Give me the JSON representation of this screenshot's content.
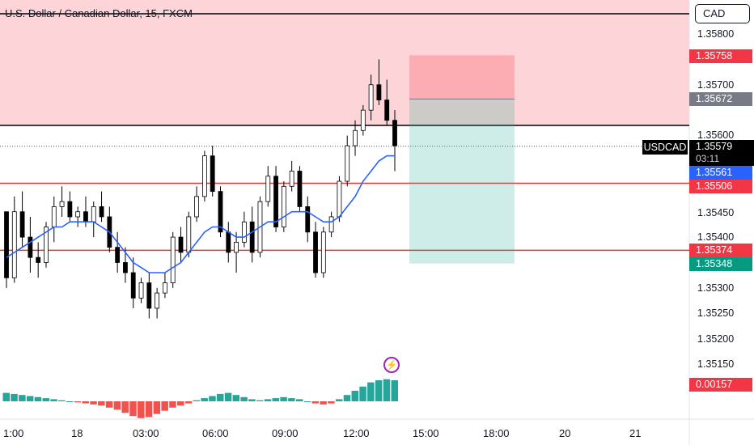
{
  "header": {
    "title": "U.S. Dollar / Canadian Dollar, 15, FXCM",
    "currency_button": "CAD"
  },
  "price_axis": {
    "ticks": [
      "1.35800",
      "1.35700",
      "1.35600",
      "1.35450",
      "1.35400",
      "1.35300",
      "1.35250",
      "1.35200",
      "1.35150"
    ]
  },
  "price_tags": {
    "stop": "1.35758",
    "entry": "1.35672",
    "symbol": "USDCAD",
    "last_price": "1.35579",
    "countdown": "03:11",
    "ma": "1.35561",
    "upper_line": "1.35506",
    "lower_line": "1.35374",
    "target": "1.35348",
    "oscillator": "0.00157"
  },
  "time_axis": {
    "labels": [
      "1:00",
      "18",
      "03:00",
      "06:00",
      "09:00",
      "12:00",
      "15:00",
      "18:00",
      "20",
      "21"
    ]
  },
  "colors": {
    "up": "#ffffff",
    "down": "#000000",
    "ma": "#2962ff",
    "hline": "#e53935",
    "stop_zone": "#f7525f",
    "target_zone": "#22ab94",
    "hist_up": "#26a69a",
    "hist_down": "#ef5350"
  },
  "icons": {
    "alert": "lightning-icon"
  },
  "chart_data": {
    "type": "candlestick",
    "symbol": "USDCAD",
    "timeframe": "15",
    "ylim": [
      1.351,
      1.3585
    ],
    "candles": [
      [
        1.3545,
        1.3545,
        1.353,
        1.3532
      ],
      [
        1.3532,
        1.3548,
        1.3531,
        1.3545
      ],
      [
        1.3545,
        1.3549,
        1.3538,
        1.354
      ],
      [
        1.354,
        1.3544,
        1.3533,
        1.3536
      ],
      [
        1.3536,
        1.3539,
        1.3532,
        1.3535
      ],
      [
        1.3535,
        1.3543,
        1.3534,
        1.3542
      ],
      [
        1.3542,
        1.3548,
        1.3539,
        1.3546
      ],
      [
        1.3546,
        1.355,
        1.3544,
        1.3547
      ],
      [
        1.3547,
        1.3549,
        1.3543,
        1.3544
      ],
      [
        1.3544,
        1.3546,
        1.3542,
        1.3545
      ],
      [
        1.3545,
        1.3548,
        1.3542,
        1.3543
      ],
      [
        1.3543,
        1.3547,
        1.354,
        1.3546
      ],
      [
        1.3546,
        1.3549,
        1.3543,
        1.3544
      ],
      [
        1.3544,
        1.3546,
        1.3537,
        1.3538
      ],
      [
        1.3538,
        1.3541,
        1.3533,
        1.3535
      ],
      [
        1.3535,
        1.3538,
        1.3531,
        1.3533
      ],
      [
        1.3533,
        1.3536,
        1.3526,
        1.3528
      ],
      [
        1.3528,
        1.3532,
        1.3527,
        1.3531
      ],
      [
        1.3531,
        1.3533,
        1.3524,
        1.3526
      ],
      [
        1.3526,
        1.353,
        1.3524,
        1.3529
      ],
      [
        1.3529,
        1.3533,
        1.3528,
        1.3531
      ],
      [
        1.3531,
        1.3541,
        1.353,
        1.354
      ],
      [
        1.354,
        1.3542,
        1.3535,
        1.3537
      ],
      [
        1.3537,
        1.3545,
        1.3536,
        1.3544
      ],
      [
        1.3544,
        1.355,
        1.3543,
        1.3548
      ],
      [
        1.3548,
        1.3557,
        1.3547,
        1.3556
      ],
      [
        1.3556,
        1.3558,
        1.3548,
        1.3549
      ],
      [
        1.3549,
        1.355,
        1.354,
        1.3541
      ],
      [
        1.3541,
        1.3543,
        1.3535,
        1.3537
      ],
      [
        1.3537,
        1.3541,
        1.3533,
        1.3539
      ],
      [
        1.3539,
        1.3545,
        1.3538,
        1.3543
      ],
      [
        1.3543,
        1.3546,
        1.3535,
        1.3537
      ],
      [
        1.3537,
        1.3548,
        1.3536,
        1.3547
      ],
      [
        1.3547,
        1.3554,
        1.3546,
        1.3552
      ],
      [
        1.3552,
        1.3554,
        1.3541,
        1.3542
      ],
      [
        1.3542,
        1.3551,
        1.3541,
        1.355
      ],
      [
        1.355,
        1.3555,
        1.3549,
        1.3553
      ],
      [
        1.3553,
        1.3554,
        1.3545,
        1.3546
      ],
      [
        1.3546,
        1.3548,
        1.3539,
        1.3541
      ],
      [
        1.3541,
        1.3543,
        1.3532,
        1.3533
      ],
      [
        1.3533,
        1.3542,
        1.3532,
        1.3541
      ],
      [
        1.3541,
        1.3545,
        1.354,
        1.3544
      ],
      [
        1.3544,
        1.3552,
        1.3543,
        1.3551
      ],
      [
        1.3551,
        1.356,
        1.355,
        1.3558
      ],
      [
        1.3558,
        1.3563,
        1.3556,
        1.3561
      ],
      [
        1.3561,
        1.3566,
        1.356,
        1.3565
      ],
      [
        1.3565,
        1.3572,
        1.3563,
        1.357
      ],
      [
        1.357,
        1.3575,
        1.3566,
        1.3567
      ],
      [
        1.3567,
        1.3571,
        1.3562,
        1.3563
      ],
      [
        1.3563,
        1.3565,
        1.3553,
        1.3558
      ]
    ],
    "ma_line": [
      1.3536,
      1.3537,
      1.3538,
      1.3539,
      1.354,
      1.3541,
      1.3542,
      1.3542,
      1.3543,
      1.3543,
      1.3543,
      1.3543,
      1.3542,
      1.3541,
      1.3539,
      1.3537,
      1.3535,
      1.3534,
      1.3533,
      1.3533,
      1.3533,
      1.3534,
      1.3535,
      1.3537,
      1.3539,
      1.3541,
      1.3542,
      1.3542,
      1.3541,
      1.354,
      1.354,
      1.3541,
      1.3542,
      1.3543,
      1.3543,
      1.3544,
      1.3545,
      1.3545,
      1.3545,
      1.3544,
      1.3543,
      1.3543,
      1.3544,
      1.3546,
      1.3548,
      1.3551,
      1.3553,
      1.3555,
      1.3556,
      1.3556
    ],
    "histogram": [
      0.4,
      0.35,
      0.3,
      0.25,
      0.2,
      0.15,
      0.1,
      0.05,
      0.0,
      -0.05,
      -0.1,
      -0.15,
      -0.2,
      -0.3,
      -0.4,
      -0.55,
      -0.7,
      -0.8,
      -0.75,
      -0.6,
      -0.45,
      -0.3,
      -0.2,
      -0.1,
      0.05,
      0.15,
      0.25,
      0.35,
      0.4,
      0.3,
      0.2,
      0.1,
      0.05,
      0.1,
      0.15,
      0.2,
      0.15,
      0.1,
      0.0,
      -0.1,
      -0.15,
      -0.1,
      0.1,
      0.3,
      0.5,
      0.7,
      0.9,
      1.0,
      1.05,
      1.0
    ],
    "horizontal_lines": [
      {
        "price": 1.35506,
        "color": "red"
      },
      {
        "price": 1.35374,
        "color": "red"
      },
      {
        "price": 1.3562,
        "color": "black"
      },
      {
        "price": 1.3585,
        "color": "black"
      }
    ],
    "position": {
      "type": "short",
      "entry": 1.35672,
      "stop": 1.35758,
      "target": 1.35348
    }
  }
}
